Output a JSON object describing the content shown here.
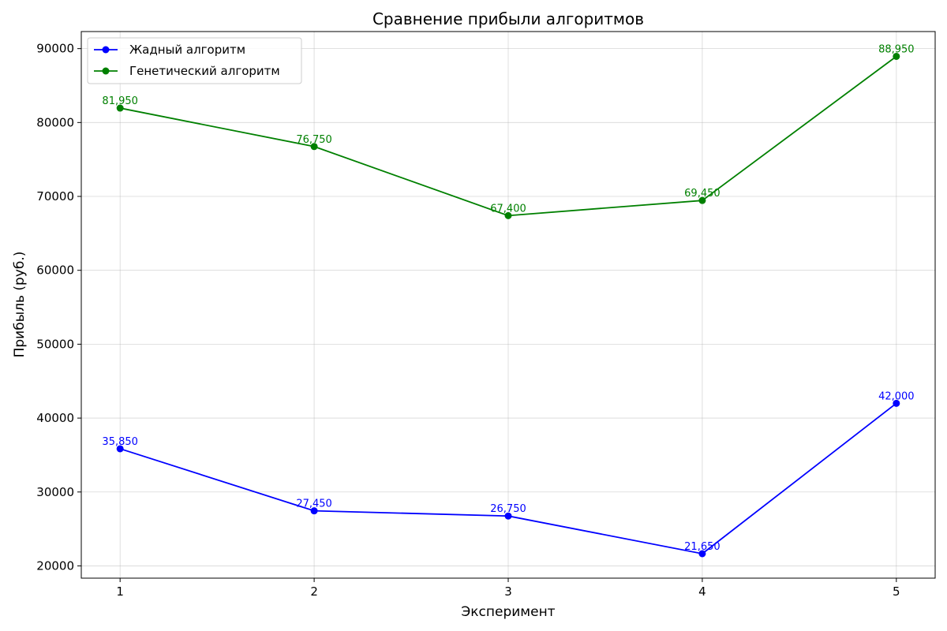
{
  "chart_data": {
    "type": "line",
    "title": "Сравнение прибыли алгоритмов",
    "xlabel": "Эксперимент",
    "ylabel": "Прибыль (руб.)",
    "x": [
      1,
      2,
      3,
      4,
      5
    ],
    "x_tick_labels": [
      "1",
      "2",
      "3",
      "4",
      "5"
    ],
    "y_ticks": [
      20000,
      30000,
      40000,
      50000,
      60000,
      70000,
      80000,
      90000
    ],
    "y_tick_labels": [
      "20000",
      "30000",
      "40000",
      "50000",
      "60000",
      "70000",
      "80000",
      "90000"
    ],
    "xlim": [
      0.8,
      5.2
    ],
    "ylim": [
      18340,
      92310
    ],
    "grid": true,
    "legend_position": "top-left",
    "series": [
      {
        "name": "Жадный алгоритм",
        "color": "#0000ff",
        "values": [
          35850,
          27450,
          26750,
          21650,
          42000
        ],
        "data_labels": [
          "35,850",
          "27,450",
          "26,750",
          "21,650",
          "42,000"
        ]
      },
      {
        "name": "Генетический алгоритм",
        "color": "#008000",
        "values": [
          81950,
          76750,
          67400,
          69450,
          88950
        ],
        "data_labels": [
          "81,950",
          "76,750",
          "67,400",
          "69,450",
          "88,950"
        ]
      }
    ]
  }
}
